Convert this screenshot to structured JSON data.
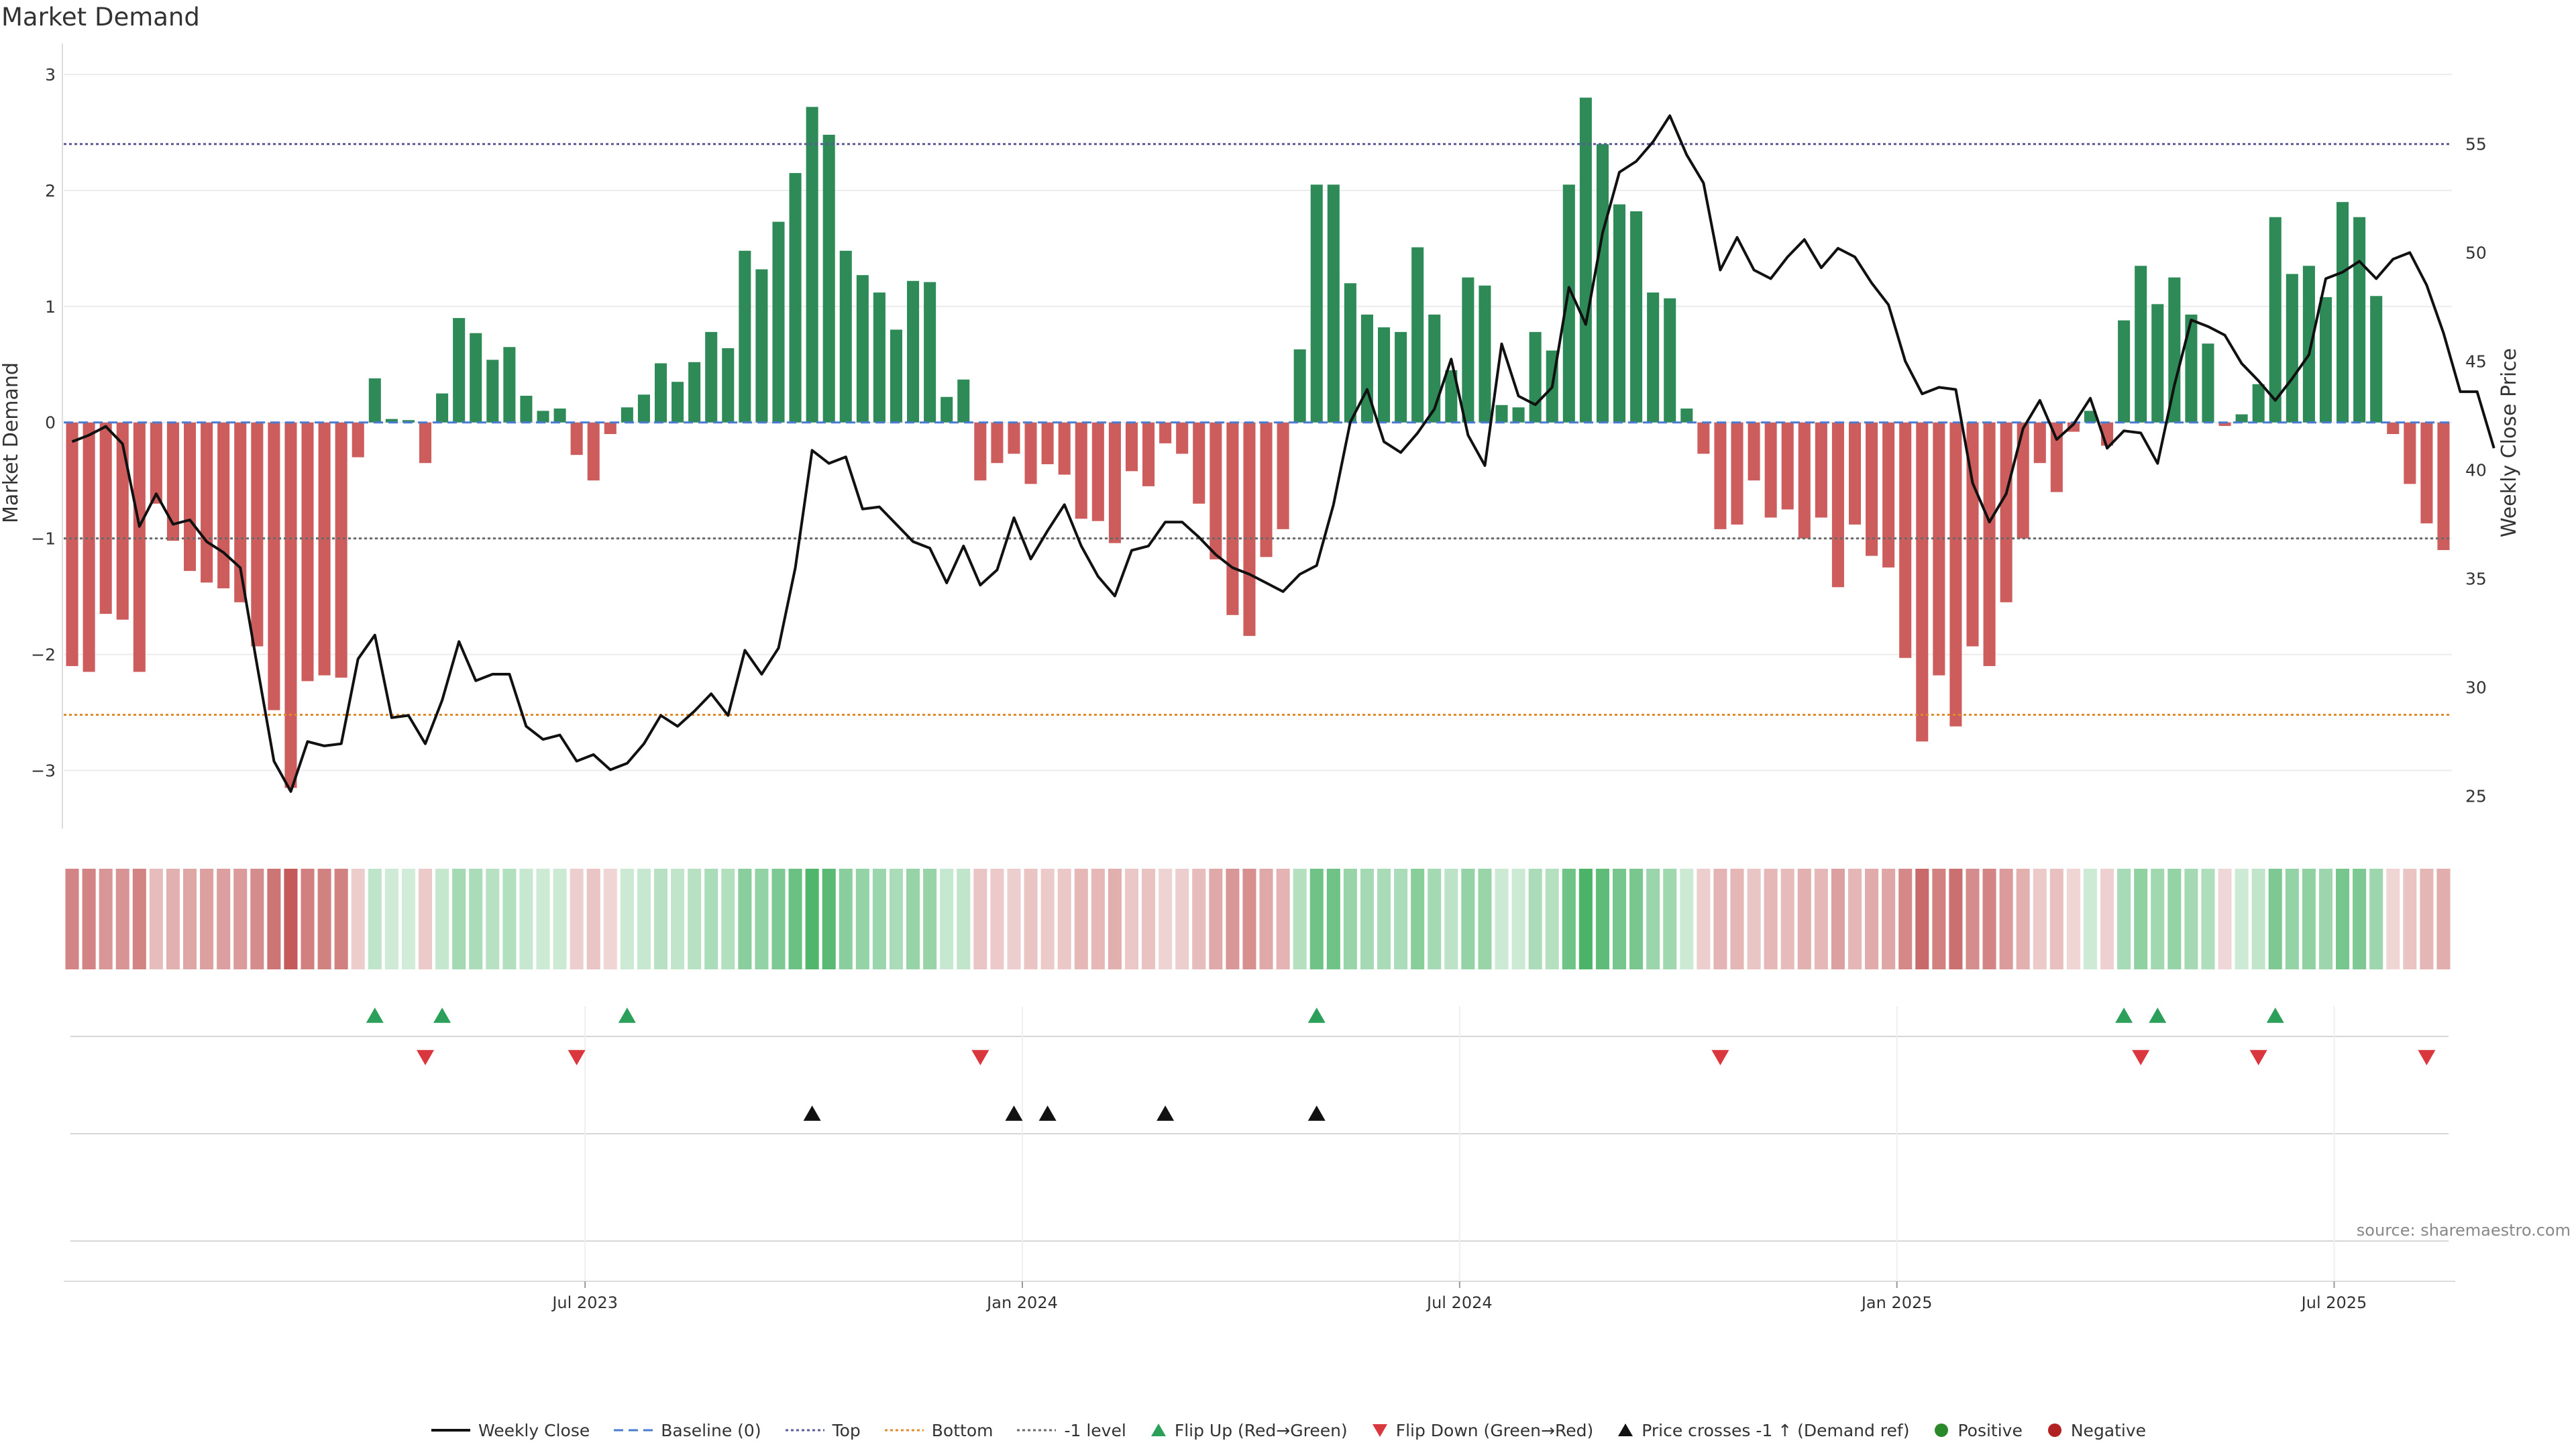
{
  "chart_data": {
    "type": "bar",
    "title": "Market Demand",
    "ylabel": "Market Demand",
    "ylabel_right": "Weekly Close Price",
    "ylim": [
      -3.5,
      3.15
    ],
    "ylim_right": [
      23.5,
      59
    ],
    "yticks": [
      3,
      2,
      1,
      0,
      -1,
      -2,
      -3
    ],
    "yticks_right": [
      55,
      50,
      45,
      40,
      35,
      30,
      25
    ],
    "x_ticks": [
      {
        "label": "Jul 2023",
        "week": 31
      },
      {
        "label": "Jan 2024",
        "week": 57
      },
      {
        "label": "Jul 2024",
        "week": 83
      },
      {
        "label": "Jan 2025",
        "week": 109
      },
      {
        "label": "Jul 2025",
        "week": 135
      }
    ],
    "reference_lines": [
      {
        "name": "Baseline (0)",
        "value": 0
      },
      {
        "name": "Top",
        "value": 2.4
      },
      {
        "name": "Bottom",
        "value": -2.52
      },
      {
        "name": "-1 level",
        "value": -1
      }
    ],
    "demand": [
      -2.1,
      -2.15,
      -1.65,
      -1.7,
      -2.15,
      -0.7,
      -1.02,
      -1.28,
      -1.38,
      -1.43,
      -1.55,
      -1.93,
      -2.48,
      -3.15,
      -2.23,
      -2.18,
      -2.2,
      -0.3,
      0.38,
      0.03,
      0.02,
      -0.35,
      0.25,
      0.9,
      0.77,
      0.54,
      0.65,
      0.23,
      0.1,
      0.12,
      -0.28,
      -0.5,
      -0.1,
      0.13,
      0.24,
      0.51,
      0.35,
      0.52,
      0.78,
      0.64,
      1.48,
      1.32,
      1.73,
      2.15,
      2.72,
      2.48,
      1.48,
      1.27,
      1.12,
      0.8,
      1.22,
      1.21,
      0.22,
      0.37,
      -0.5,
      -0.35,
      -0.27,
      -0.53,
      -0.36,
      -0.45,
      -0.83,
      -0.85,
      -1.04,
      -0.42,
      -0.55,
      -0.18,
      -0.27,
      -0.7,
      -1.18,
      -1.66,
      -1.84,
      -1.16,
      -0.92,
      0.63,
      2.05,
      2.05,
      1.2,
      0.93,
      0.82,
      0.78,
      1.51,
      0.93,
      0.45,
      1.25,
      1.18,
      0.15,
      0.13,
      0.78,
      0.62,
      2.05,
      2.8,
      2.4,
      1.88,
      1.82,
      1.12,
      1.07,
      0.12,
      -0.27,
      -0.92,
      -0.88,
      -0.5,
      -0.82,
      -0.75,
      -1.0,
      -0.82,
      -1.42,
      -0.88,
      -1.15,
      -1.25,
      -2.03,
      -2.75,
      -2.18,
      -2.62,
      -1.93,
      -2.1,
      -1.55,
      -1.0,
      -0.35,
      -0.6,
      -0.08,
      0.1,
      -0.2,
      0.88,
      1.35,
      1.02,
      1.25,
      0.93,
      0.68,
      -0.03,
      0.07,
      0.33,
      1.77,
      1.28,
      1.35,
      1.08,
      1.9,
      1.77,
      1.09,
      -0.1,
      -0.53,
      -0.87,
      -1.1
    ],
    "price": [
      41.3,
      41.6,
      42,
      41.2,
      37.4,
      38.9,
      37.5,
      37.7,
      36.7,
      36.2,
      35.5,
      31,
      26.6,
      25.2,
      27.5,
      27.3,
      27.4,
      31.3,
      32.4,
      28.6,
      28.7,
      27.4,
      29.4,
      32.1,
      30.3,
      30.6,
      30.6,
      28.2,
      27.6,
      27.8,
      26.6,
      26.9,
      26.2,
      26.5,
      27.4,
      28.7,
      28.2,
      28.9,
      29.7,
      28.7,
      31.7,
      30.6,
      31.8,
      35.5,
      40.9,
      40.3,
      40.6,
      38.2,
      38.3,
      37.5,
      36.7,
      36.4,
      34.8,
      36.5,
      34.7,
      35.4,
      37.8,
      35.9,
      37.2,
      38.4,
      36.5,
      35.1,
      34.2,
      36.3,
      36.5,
      37.6,
      37.6,
      36.9,
      36.1,
      35.5,
      35.2,
      34.8,
      34.4,
      35.2,
      35.6,
      38.4,
      42.2,
      43.7,
      41.3,
      40.8,
      41.7,
      42.8,
      45.1,
      41.6,
      40.2,
      45.8,
      43.4,
      43,
      43.8,
      48.4,
      46.7,
      50.9,
      53.7,
      54.2,
      55.1,
      56.3,
      54.5,
      53.2,
      49.2,
      50.7,
      49.2,
      48.8,
      49.8,
      50.6,
      49.3,
      50.2,
      49.8,
      48.6,
      47.6,
      45,
      43.5,
      43.8,
      43.7,
      39.4,
      37.6,
      38.9,
      41.9,
      43.2,
      41.4,
      42.1,
      43.3,
      41,
      41.8,
      41.7,
      40.3,
      43.9,
      46.9,
      46.6,
      46.2,
      44.9,
      44.1,
      43.2,
      44.2,
      45.3,
      48.8,
      49.1,
      49.6,
      48.8,
      49.7,
      50,
      48.5,
      46.3,
      43.6,
      43.6,
      41
    ],
    "signals": {
      "flip_up_weeks": [
        18,
        22,
        33,
        74,
        122,
        124,
        131
      ],
      "flip_down_weeks": [
        21,
        30,
        54,
        98,
        123,
        130,
        140
      ],
      "price_cross_weeks": [
        44,
        56,
        58,
        65,
        74
      ]
    },
    "legend": [
      {
        "label": "Weekly Close",
        "kind": "line",
        "color": "#111111"
      },
      {
        "label": "Baseline (0)",
        "kind": "dash",
        "color": "#4a7bd0"
      },
      {
        "label": "Top",
        "kind": "dot",
        "color": "#5a5a9a"
      },
      {
        "label": "Bottom",
        "kind": "dot",
        "color": "#e08a2c"
      },
      {
        "label": "-1 level",
        "kind": "dot",
        "color": "#6a6a6a"
      },
      {
        "label": "Flip Up (Red→Green)",
        "kind": "tri-up",
        "color": "#2ca05a"
      },
      {
        "label": "Flip Down (Green→Red)",
        "kind": "tri-down",
        "color": "#d9363e"
      },
      {
        "label": "Price crosses -1 ↑ (Demand ref)",
        "kind": "tri-up",
        "color": "#111111"
      },
      {
        "label": "Positive",
        "kind": "dot-marker",
        "color": "#2a8a2a"
      },
      {
        "label": "Negative",
        "kind": "dot-marker",
        "color": "#b22222"
      }
    ],
    "source": "source: sharemaestro.com"
  },
  "colors": {
    "positive_bar": "#2e8b57",
    "negative_bar": "#cd5c5c",
    "grid": "#ececec"
  }
}
